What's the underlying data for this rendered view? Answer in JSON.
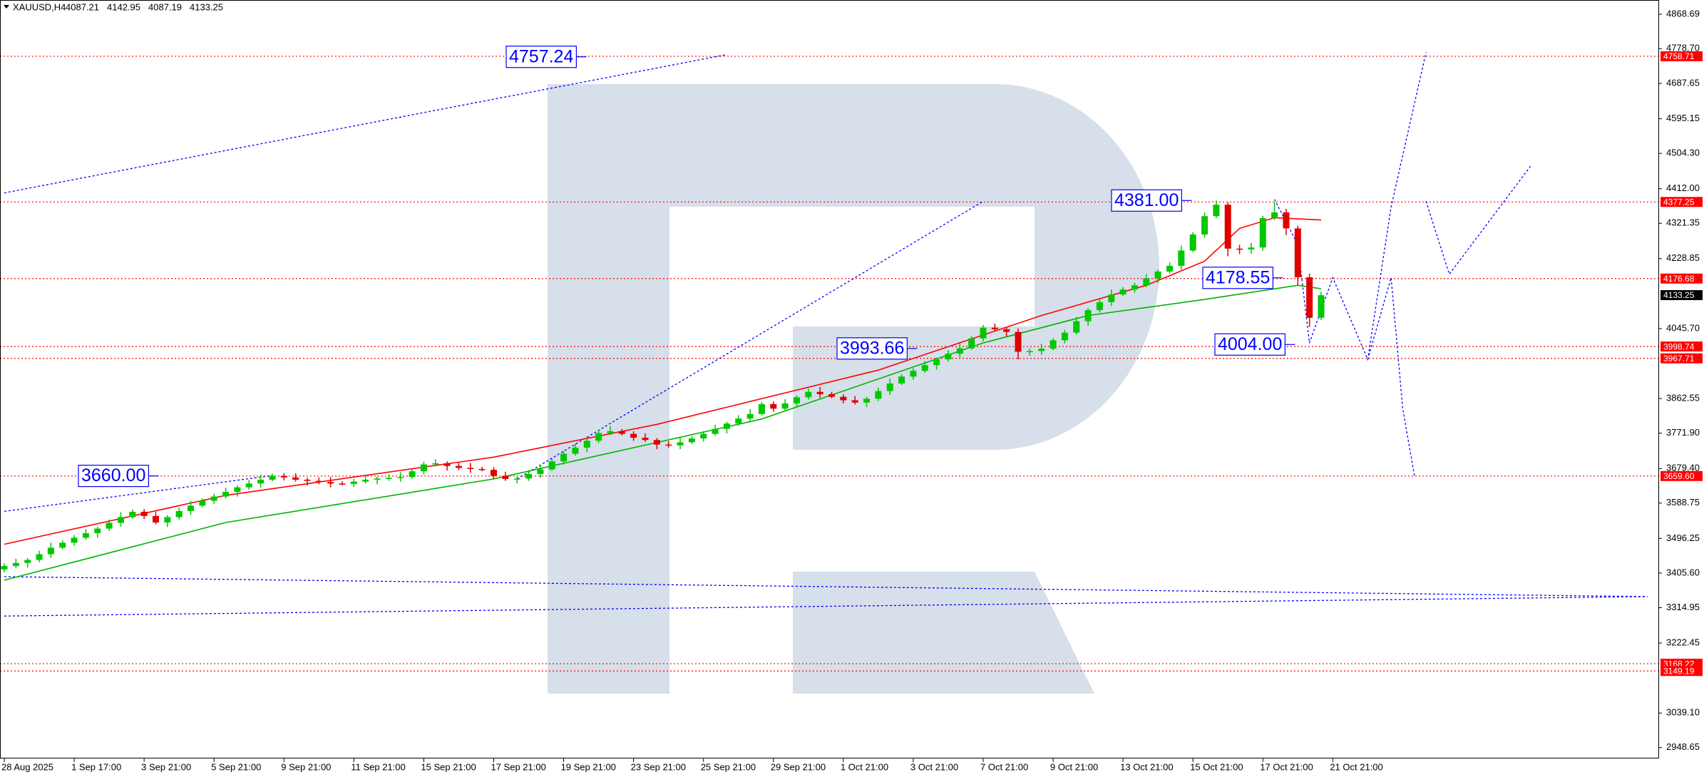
{
  "chart_data": {
    "type": "candlestick",
    "header": {
      "symbol": "XAUUSD,H4",
      "ohlc": [
        4087.21,
        4142.95,
        4087.19,
        4133.25
      ]
    },
    "colors": {
      "up": "#00c800",
      "down": "#e00000"
    },
    "xlim": [
      0,
      142
    ],
    "xticks": [
      {
        "value": 0,
        "label": "28 Aug 2025"
      },
      {
        "value": 6,
        "label": "1 Sep 17:00"
      },
      {
        "value": 12,
        "label": "3 Sep 21:00"
      },
      {
        "value": 18,
        "label": "5 Sep 21:00"
      },
      {
        "value": 24,
        "label": "9 Sep 21:00"
      },
      {
        "value": 30,
        "label": "11 Sep 21:00"
      },
      {
        "value": 36,
        "label": "15 Sep 21:00"
      },
      {
        "value": 42,
        "label": "17 Sep 21:00"
      },
      {
        "value": 48,
        "label": "19 Sep 21:00"
      },
      {
        "value": 54,
        "label": "23 Sep 21:00"
      },
      {
        "value": 60,
        "label": "25 Sep 21:00"
      },
      {
        "value": 66,
        "label": "29 Sep 21:00"
      },
      {
        "value": 72,
        "label": "1 Oct 21:00"
      },
      {
        "value": 78,
        "label": "3 Oct 21:00"
      },
      {
        "value": 84,
        "label": "7 Oct 21:00"
      },
      {
        "value": 90,
        "label": "9 Oct 21:00"
      },
      {
        "value": 96,
        "label": "13 Oct 21:00"
      },
      {
        "value": 102,
        "label": "15 Oct 21:00"
      },
      {
        "value": 108,
        "label": "17 Oct 21:00"
      },
      {
        "value": 114,
        "label": "21 Oct 21:00"
      }
    ],
    "ylim": [
      2922,
      4906
    ],
    "yticks": [
      4868.69,
      {
        "value": 4778.7,
        "label": "4778.70"
      },
      4687.65,
      4595.15,
      {
        "value": 4504.3,
        "label": "4504.30"
      },
      {
        "value": 4412,
        "label": "4412.00"
      },
      4321.35,
      4228.85,
      {
        "value": 4045.7,
        "label": "4045.70"
      },
      3862.55,
      {
        "value": 3771.9,
        "label": "3771.90"
      },
      {
        "value": 3679.4,
        "label": "3679.40"
      },
      3588.75,
      3496.25,
      {
        "value": 3405.6,
        "label": "3405.60"
      },
      3314.95,
      3222.45,
      {
        "value": 3039.1,
        "label": "3039.10"
      },
      2948.65
    ],
    "open": [
      3415,
      3424,
      3432,
      3440,
      3455,
      3472,
      3485,
      3498,
      3510,
      3522,
      3537,
      3552,
      3566,
      3555,
      3538,
      3552,
      3568,
      3582,
      3595,
      3606,
      3618,
      3630,
      3640,
      3650,
      3660,
      3656,
      3650,
      3647,
      3644,
      3640,
      3639,
      3645,
      3650,
      3653,
      3655,
      3657,
      3672,
      3690,
      3693,
      3686,
      3681,
      3678,
      3676,
      3660,
      3652,
      3653,
      3665,
      3677,
      3698,
      3718,
      3734,
      3752,
      3772,
      3777,
      3770,
      3760,
      3754,
      3742,
      3740,
      3748,
      3758,
      3770,
      3783,
      3797,
      3810,
      3822,
      3848,
      3836,
      3850,
      3866,
      3880,
      3874,
      3867,
      3858,
      3852,
      3862,
      3882,
      3902,
      3920,
      3935,
      3950,
      3965,
      3980,
      3994,
      4020,
      4048,
      4044,
      4037,
      3985,
      3987,
      3993,
      4015,
      4035,
      4065,
      4094,
      4115,
      4135,
      4148,
      4159,
      4177,
      4195,
      4210,
      4250,
      4292,
      4340,
      4370,
      4255,
      4253,
      4258,
      4335,
      4350,
      4308,
      4180,
      4074
    ],
    "high": [
      3431,
      3443,
      3445,
      3464,
      3485,
      3491,
      3505,
      3521,
      3527,
      3546,
      3565,
      3572,
      3573,
      3566,
      3557,
      3577,
      3595,
      3601,
      3613,
      3629,
      3635,
      3649,
      3663,
      3666,
      3667,
      3667,
      3655,
      3656,
      3657,
      3646,
      3652,
      3661,
      3658,
      3664,
      3670,
      3678,
      3697,
      3704,
      3698,
      3695,
      3694,
      3684,
      3683,
      3671,
      3658,
      3674,
      3690,
      3704,
      3725,
      3745,
      3757,
      3781,
      3790,
      3783,
      3777,
      3771,
      3759,
      3751,
      3761,
      3764,
      3777,
      3794,
      3802,
      3819,
      3835,
      3854,
      3855,
      3861,
      3871,
      3889,
      3893,
      3880,
      3874,
      3869,
      3867,
      3891,
      3915,
      3926,
      3942,
      3961,
      3970,
      3989,
      4007,
      4026,
      4055,
      4059,
      4049,
      4046,
      3994,
      4006,
      4021,
      4042,
      4076,
      4099,
      4124,
      4148,
      4154,
      4166,
      4188,
      4200,
      4219,
      4263,
      4298,
      4350,
      4381,
      4376,
      4265,
      4270,
      4341,
      4377,
      4359,
      4315,
      4190,
      4142
    ],
    "low": [
      3407,
      3419,
      3420,
      3434,
      3445,
      3468,
      3477,
      3493,
      3498,
      3516,
      3527,
      3548,
      3547,
      3533,
      3526,
      3546,
      3558,
      3578,
      3587,
      3601,
      3606,
      3624,
      3630,
      3646,
      3648,
      3645,
      3635,
      3638,
      3630,
      3635,
      3631,
      3640,
      3638,
      3647,
      3645,
      3653,
      3664,
      3685,
      3674,
      3675,
      3668,
      3672,
      3652,
      3647,
      3640,
      3647,
      3655,
      3673,
      3690,
      3713,
      3722,
      3746,
      3767,
      3766,
      3752,
      3749,
      3730,
      3734,
      3730,
      3744,
      3750,
      3765,
      3771,
      3791,
      3800,
      3818,
      3828,
      3831,
      3838,
      3860,
      3864,
      3863,
      3850,
      3847,
      3840,
      3856,
      3872,
      3898,
      3912,
      3930,
      3938,
      3959,
      3970,
      3990,
      4012,
      4039,
      4025,
      3965,
      3975,
      3977,
      3989,
      4007,
      4030,
      4053,
      4088,
      4105,
      4131,
      4140,
      4154,
      4165,
      4189,
      4200,
      4246,
      4284,
      4335,
      4235,
      4241,
      4242,
      4250,
      4330,
      4290,
      4160,
      4050,
      4068
    ],
    "close": [
      3424,
      3432,
      3440,
      3455,
      3472,
      3485,
      3498,
      3510,
      3522,
      3537,
      3552,
      3566,
      3555,
      3538,
      3552,
      3568,
      3582,
      3595,
      3606,
      3618,
      3630,
      3640,
      3650,
      3660,
      3656,
      3650,
      3647,
      3644,
      3640,
      3639,
      3645,
      3650,
      3653,
      3655,
      3657,
      3672,
      3690,
      3693,
      3686,
      3681,
      3678,
      3676,
      3660,
      3652,
      3653,
      3665,
      3677,
      3698,
      3718,
      3734,
      3752,
      3772,
      3777,
      3770,
      3760,
      3754,
      3742,
      3740,
      3748,
      3758,
      3770,
      3783,
      3797,
      3810,
      3822,
      3848,
      3836,
      3850,
      3866,
      3880,
      3874,
      3867,
      3858,
      3852,
      3862,
      3882,
      3902,
      3920,
      3935,
      3950,
      3965,
      3980,
      3994,
      4020,
      4048,
      4044,
      4037,
      3985,
      3987,
      3993,
      4015,
      4035,
      4065,
      4094,
      4115,
      4135,
      4148,
      4159,
      4177,
      4195,
      4210,
      4250,
      4292,
      4340,
      4370,
      4255,
      4253,
      4258,
      4335,
      4350,
      4308,
      4180,
      4074,
      4133
    ],
    "moving_averages": [
      {
        "color": "#ff0000",
        "x": [
          0,
          19,
          42,
          56,
          75,
          89,
          98,
          103,
          106,
          109,
          113
        ],
        "values": [
          3481,
          3609,
          3709,
          3795,
          3937,
          4080,
          4159,
          4222,
          4308,
          4336,
          4330
        ]
      },
      {
        "color": "#00b400",
        "x": [
          0,
          19,
          42,
          65,
          84,
          93,
          103,
          111,
          113
        ],
        "values": [
          3387,
          3538,
          3652,
          3809,
          4008,
          4080,
          4122,
          4159,
          4150
        ]
      }
    ],
    "trend_lines": [
      {
        "color": "#0000ff",
        "x": [
          0,
          62
        ],
        "values": [
          4401,
          4763
        ]
      },
      {
        "color": "#0000ff",
        "x": [
          0,
          23
        ],
        "values": [
          3567,
          3661
        ]
      },
      {
        "color": "#0000ff",
        "x": [
          44,
          84
        ],
        "values": [
          3652,
          4379
        ]
      },
      {
        "color": "#0000ff",
        "x": [
          0,
          141
        ],
        "values": [
          3396,
          3344
        ]
      },
      {
        "color": "#0000ff",
        "x": [
          0,
          141
        ],
        "values": [
          3293,
          3344
        ]
      },
      {
        "color": "#0000ff",
        "x": [
          109,
          111,
          112,
          114,
          117,
          119,
          122
        ],
        "values": [
          4384,
          4265,
          4008,
          4179,
          3965,
          4364,
          4769
        ]
      },
      {
        "color": "#0000ff",
        "x": [
          117,
          119,
          120,
          121
        ],
        "values": [
          3965,
          4179,
          3837,
          3661
        ]
      },
      {
        "color": "#0000ff",
        "x": [
          122,
          124,
          131
        ],
        "values": [
          4379,
          4188,
          4472
        ]
      }
    ],
    "levels": [
      {
        "value": 4758.71,
        "label": "4758.71"
      },
      {
        "value": 4377.25,
        "label": "4377.25"
      },
      {
        "value": 4176.68,
        "label": "4176.68"
      },
      {
        "value": 3998.74,
        "label": "3998.74"
      },
      {
        "value": 3967.71,
        "label": "3967.71"
      },
      {
        "value": 3659.6,
        "label": "3659.60"
      },
      {
        "value": 3168.22,
        "label": "3168.22"
      },
      {
        "value": 3149.19,
        "label": "3149.19"
      }
    ],
    "level_color": "#ff0000",
    "current_price": {
      "value": 4133.25,
      "label": "4133.25"
    },
    "annotations": [
      {
        "value": 4757.24,
        "label": "4757.24"
      },
      {
        "value": 4381,
        "label": "4381.00"
      },
      {
        "value": 4178.55,
        "label": "4178.55"
      },
      {
        "value": 3993.66,
        "label": "3993.66"
      },
      {
        "value": 4004,
        "label": "4004.00"
      },
      {
        "value": 3660,
        "label": "3660.00"
      }
    ]
  }
}
